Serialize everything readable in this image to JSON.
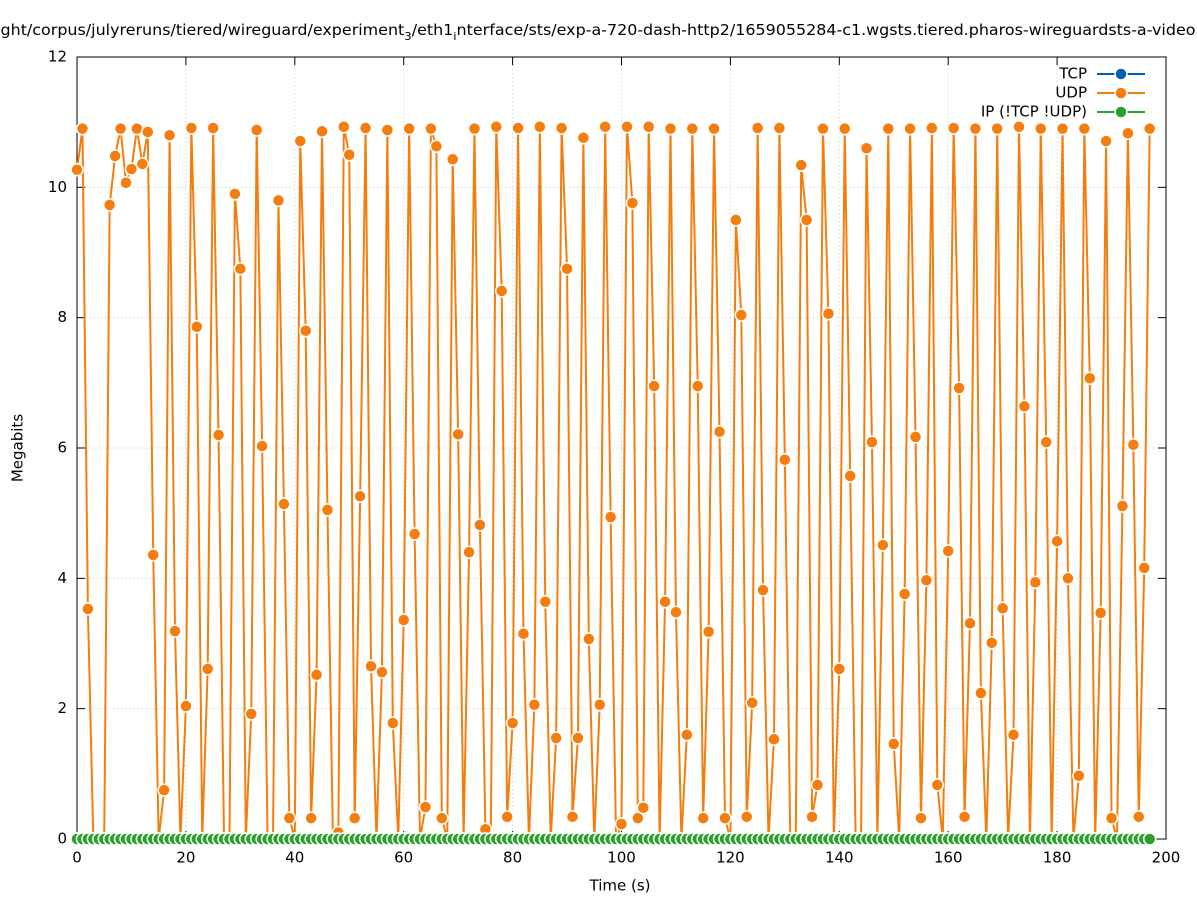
{
  "chart_data": {
    "type": "line",
    "title": [
      "ght/corpus/julyreruns/tiered/wireguard/experiment",
      "3",
      "/eth1",
      "i",
      "nterface/sts/exp-a-720-dash-http2/1659055284-c1.wgsts.tiered.pharos-wireguardsts-a-video"
    ],
    "xlabel": "Time (s)",
    "ylabel": "Megabits",
    "xlim": [
      0,
      200
    ],
    "xticks": [
      0,
      20,
      40,
      60,
      80,
      100,
      120,
      140,
      160,
      180,
      200
    ],
    "ylim": [
      0,
      12
    ],
    "yticks": [
      0,
      2,
      4,
      6,
      8,
      10,
      12
    ],
    "grid": true,
    "legend": "top-right",
    "x": [
      0,
      1,
      2,
      3,
      4,
      5,
      6,
      7,
      8,
      9,
      10,
      11,
      12,
      13,
      14,
      15,
      16,
      17,
      18,
      19,
      20,
      21,
      22,
      23,
      24,
      25,
      26,
      27,
      28,
      29,
      30,
      31,
      32,
      33,
      34,
      35,
      36,
      37,
      38,
      39,
      40,
      41,
      42,
      43,
      44,
      45,
      46,
      47,
      48,
      49,
      50,
      51,
      52,
      53,
      54,
      55,
      56,
      57,
      58,
      59,
      60,
      61,
      62,
      63,
      64,
      65,
      66,
      67,
      68,
      69,
      70,
      71,
      72,
      73,
      74,
      75,
      76,
      77,
      78,
      79,
      80,
      81,
      82,
      83,
      84,
      85,
      86,
      87,
      88,
      89,
      90,
      91,
      92,
      93,
      94,
      95,
      96,
      97,
      98,
      99,
      100,
      101,
      102,
      103,
      104,
      105,
      106,
      107,
      108,
      109,
      110,
      111,
      112,
      113,
      114,
      115,
      116,
      117,
      118,
      119,
      120,
      121,
      122,
      123,
      124,
      125,
      126,
      127,
      128,
      129,
      130,
      131,
      132,
      133,
      134,
      135,
      136,
      137,
      138,
      139,
      140,
      141,
      142,
      143,
      144,
      145,
      146,
      147,
      148,
      149,
      150,
      151,
      152,
      153,
      154,
      155,
      156,
      157,
      158,
      159,
      160,
      161,
      162,
      163,
      164,
      165,
      166,
      167,
      168,
      169,
      170,
      171,
      172,
      173,
      174,
      175,
      176,
      177,
      178,
      179,
      180,
      181,
      182,
      183,
      184,
      185,
      186,
      187,
      188,
      189,
      190,
      191,
      192,
      193,
      194,
      195,
      196,
      197
    ],
    "series": [
      {
        "name": "TCP",
        "color": "#0060ad",
        "values": [
          0,
          0,
          0,
          0,
          0,
          0,
          0,
          0,
          0,
          0,
          0,
          0,
          0,
          0,
          0,
          0,
          0,
          0,
          0,
          0,
          0,
          0,
          0,
          0,
          0,
          0,
          0,
          0,
          0,
          0,
          0,
          0,
          0,
          0,
          0,
          0,
          0,
          0,
          0,
          0,
          0,
          0,
          0,
          0,
          0,
          0,
          0,
          0,
          0,
          0,
          0,
          0,
          0,
          0,
          0,
          0,
          0,
          0,
          0,
          0,
          0,
          0,
          0,
          0,
          0,
          0,
          0,
          0,
          0,
          0,
          0,
          0,
          0,
          0,
          0,
          0,
          0,
          0,
          0,
          0,
          0,
          0,
          0,
          0,
          0,
          0,
          0,
          0,
          0,
          0,
          0,
          0,
          0,
          0,
          0,
          0,
          0,
          0,
          0,
          0,
          0,
          0,
          0,
          0,
          0,
          0,
          0,
          0,
          0,
          0,
          0,
          0,
          0,
          0,
          0,
          0,
          0,
          0,
          0,
          0,
          0,
          0,
          0,
          0,
          0,
          0,
          0,
          0,
          0,
          0,
          0,
          0,
          0,
          0,
          0,
          0,
          0,
          0,
          0,
          0,
          0,
          0,
          0,
          0,
          0,
          0,
          0,
          0,
          0,
          0,
          0,
          0,
          0,
          0,
          0,
          0,
          0,
          0,
          0,
          0,
          0,
          0,
          0,
          0,
          0,
          0,
          0,
          0,
          0,
          0,
          0,
          0,
          0,
          0,
          0,
          0,
          0,
          0,
          0,
          0,
          0,
          0,
          0,
          0,
          0,
          0,
          0,
          0,
          0,
          0,
          0,
          0,
          0,
          0,
          0,
          0,
          0,
          0
        ]
      },
      {
        "name": "UDP",
        "color": "#f47d0e",
        "values": [
          10.27,
          10.9,
          3.53,
          0,
          0,
          0,
          9.73,
          10.48,
          10.9,
          10.07,
          10.28,
          10.9,
          10.36,
          10.85,
          4.36,
          0,
          0.75,
          10.8,
          3.19,
          0,
          2.04,
          10.91,
          7.86,
          0,
          2.61,
          10.91,
          6.2,
          0,
          0,
          9.9,
          8.75,
          0,
          1.92,
          10.88,
          6.03,
          0,
          0,
          9.8,
          5.14,
          0.32,
          0,
          10.71,
          7.8,
          0.32,
          2.52,
          10.86,
          5.05,
          0,
          0.1,
          10.93,
          10.5,
          0.32,
          5.26,
          10.91,
          2.65,
          0,
          2.56,
          10.88,
          1.78,
          0,
          3.36,
          10.9,
          4.68,
          0,
          0.49,
          10.9,
          10.63,
          0.32,
          0,
          10.43,
          6.21,
          0,
          4.4,
          10.9,
          4.82,
          0.15,
          0,
          10.93,
          8.41,
          0.34,
          1.78,
          10.91,
          3.15,
          0,
          2.06,
          10.93,
          3.64,
          0,
          1.55,
          10.91,
          8.75,
          0.34,
          1.55,
          10.76,
          3.07,
          0,
          2.06,
          10.93,
          4.94,
          0,
          0.23,
          10.93,
          9.76,
          0.32,
          0.48,
          10.93,
          6.95,
          0,
          3.64,
          10.9,
          3.48,
          0,
          1.6,
          10.9,
          6.95,
          0.32,
          3.18,
          10.9,
          6.25,
          0.32,
          0,
          9.5,
          8.04,
          0.34,
          2.09,
          10.91,
          3.82,
          0,
          1.53,
          10.91,
          5.82,
          0,
          0,
          10.34,
          9.5,
          0.34,
          0.83,
          10.9,
          8.06,
          0,
          2.61,
          10.9,
          5.57,
          0,
          0,
          10.6,
          6.09,
          0,
          4.51,
          10.9,
          1.46,
          0,
          3.76,
          10.9,
          6.17,
          0.32,
          3.97,
          10.91,
          0.83,
          0,
          4.42,
          10.91,
          6.92,
          0.34,
          3.31,
          10.9,
          2.24,
          0,
          3.01,
          10.9,
          3.54,
          0,
          1.6,
          10.93,
          6.64,
          0,
          3.94,
          10.9,
          6.09,
          0,
          4.57,
          10.9,
          4.0,
          0,
          0.97,
          10.9,
          7.07,
          0,
          3.47,
          10.71,
          0.32,
          0,
          5.11,
          10.83,
          6.05,
          0.34,
          4.16,
          10.9
        ]
      },
      {
        "name": "IP (!TCP  !UDP)",
        "color": "#2ca02c",
        "values": [
          0,
          0,
          0,
          0,
          0,
          0,
          0,
          0,
          0,
          0,
          0,
          0,
          0,
          0,
          0,
          0,
          0,
          0,
          0,
          0,
          0,
          0,
          0,
          0,
          0,
          0,
          0,
          0,
          0,
          0,
          0,
          0,
          0,
          0,
          0,
          0,
          0,
          0,
          0,
          0,
          0,
          0,
          0,
          0,
          0,
          0,
          0,
          0,
          0,
          0,
          0,
          0,
          0,
          0,
          0,
          0,
          0,
          0,
          0,
          0,
          0,
          0,
          0,
          0,
          0,
          0,
          0,
          0,
          0,
          0,
          0,
          0,
          0,
          0,
          0,
          0,
          0,
          0,
          0,
          0,
          0,
          0,
          0,
          0,
          0,
          0,
          0,
          0,
          0,
          0,
          0,
          0,
          0,
          0,
          0,
          0,
          0,
          0,
          0,
          0,
          0,
          0,
          0,
          0,
          0,
          0,
          0,
          0,
          0,
          0,
          0,
          0,
          0,
          0,
          0,
          0,
          0,
          0,
          0,
          0,
          0,
          0,
          0,
          0,
          0,
          0,
          0,
          0,
          0,
          0,
          0,
          0,
          0,
          0,
          0,
          0,
          0,
          0,
          0,
          0,
          0,
          0,
          0,
          0,
          0,
          0,
          0,
          0,
          0,
          0,
          0,
          0,
          0,
          0,
          0,
          0,
          0,
          0,
          0,
          0,
          0,
          0,
          0,
          0,
          0,
          0,
          0,
          0,
          0,
          0,
          0,
          0,
          0,
          0,
          0,
          0,
          0,
          0,
          0,
          0,
          0,
          0,
          0,
          0,
          0,
          0,
          0,
          0,
          0,
          0,
          0,
          0,
          0,
          0,
          0,
          0,
          0,
          0
        ]
      }
    ]
  }
}
